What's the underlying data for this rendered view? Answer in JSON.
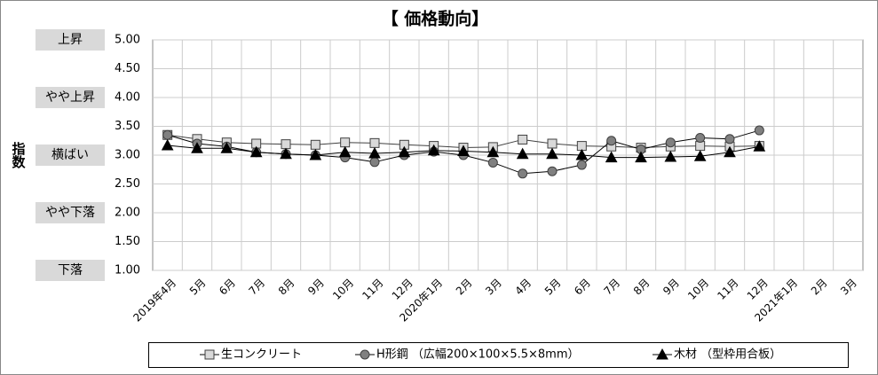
{
  "chart_data": {
    "type": "line",
    "title": "【 価格動向】",
    "ylabel": "指数",
    "categories": [
      "2019年4月",
      "5月",
      "6月",
      "7月",
      "8月",
      "9月",
      "10月",
      "11月",
      "12月",
      "2020年1月",
      "2月",
      "3月",
      "4月",
      "5月",
      "6月",
      "7月",
      "8月",
      "9月",
      "10月",
      "11月",
      "12月",
      "2021年1月",
      "2月",
      "3月"
    ],
    "series": [
      {
        "name": "生コンクリート",
        "color": "#d9d9d9",
        "marker": "square",
        "values": [
          3.35,
          3.28,
          3.22,
          3.2,
          3.19,
          3.18,
          3.22,
          3.21,
          3.18,
          3.16,
          3.13,
          3.14,
          3.27,
          3.2,
          3.16,
          3.15,
          3.13,
          3.15,
          3.16,
          3.15,
          3.16,
          null,
          null,
          null
        ]
      },
      {
        "name": "H形鋼 （広幅200×100×5.5×8mm）",
        "color": "#808080",
        "marker": "circle",
        "values": [
          3.35,
          3.2,
          3.15,
          3.05,
          3.02,
          3.0,
          2.96,
          2.88,
          3.0,
          3.06,
          3.0,
          2.87,
          2.68,
          2.72,
          2.83,
          3.25,
          3.1,
          3.22,
          3.3,
          3.28,
          3.43,
          null,
          null,
          null
        ]
      },
      {
        "name": "木材 （型枠用合板）",
        "color": "#000000",
        "marker": "triangle",
        "values": [
          3.17,
          3.12,
          3.12,
          3.05,
          3.02,
          3.0,
          3.05,
          3.03,
          3.05,
          3.08,
          3.07,
          3.05,
          3.02,
          3.02,
          3.0,
          2.96,
          2.96,
          2.97,
          2.98,
          3.05,
          3.15,
          null,
          null,
          null
        ]
      }
    ],
    "ylim": [
      1,
      5
    ],
    "yticks": [
      {
        "value": 1,
        "label": "1.00"
      },
      {
        "value": 1.5,
        "label": "1.50"
      },
      {
        "value": 2,
        "label": "2.00"
      },
      {
        "value": 2.5,
        "label": "2.50"
      },
      {
        "value": 3,
        "label": "3.00"
      },
      {
        "value": 3.5,
        "label": "3.50"
      },
      {
        "value": 4,
        "label": "4.00"
      },
      {
        "value": 4.5,
        "label": "4.50"
      },
      {
        "value": 5,
        "label": "5.00"
      }
    ],
    "level_labels": [
      {
        "value": 5,
        "label": "上昇"
      },
      {
        "value": 4,
        "label": "やや上昇"
      },
      {
        "value": 3,
        "label": "横ばい"
      },
      {
        "value": 2,
        "label": "やや下落"
      },
      {
        "value": 1,
        "label": "下落"
      }
    ],
    "grid": true,
    "legend": "bottom"
  }
}
